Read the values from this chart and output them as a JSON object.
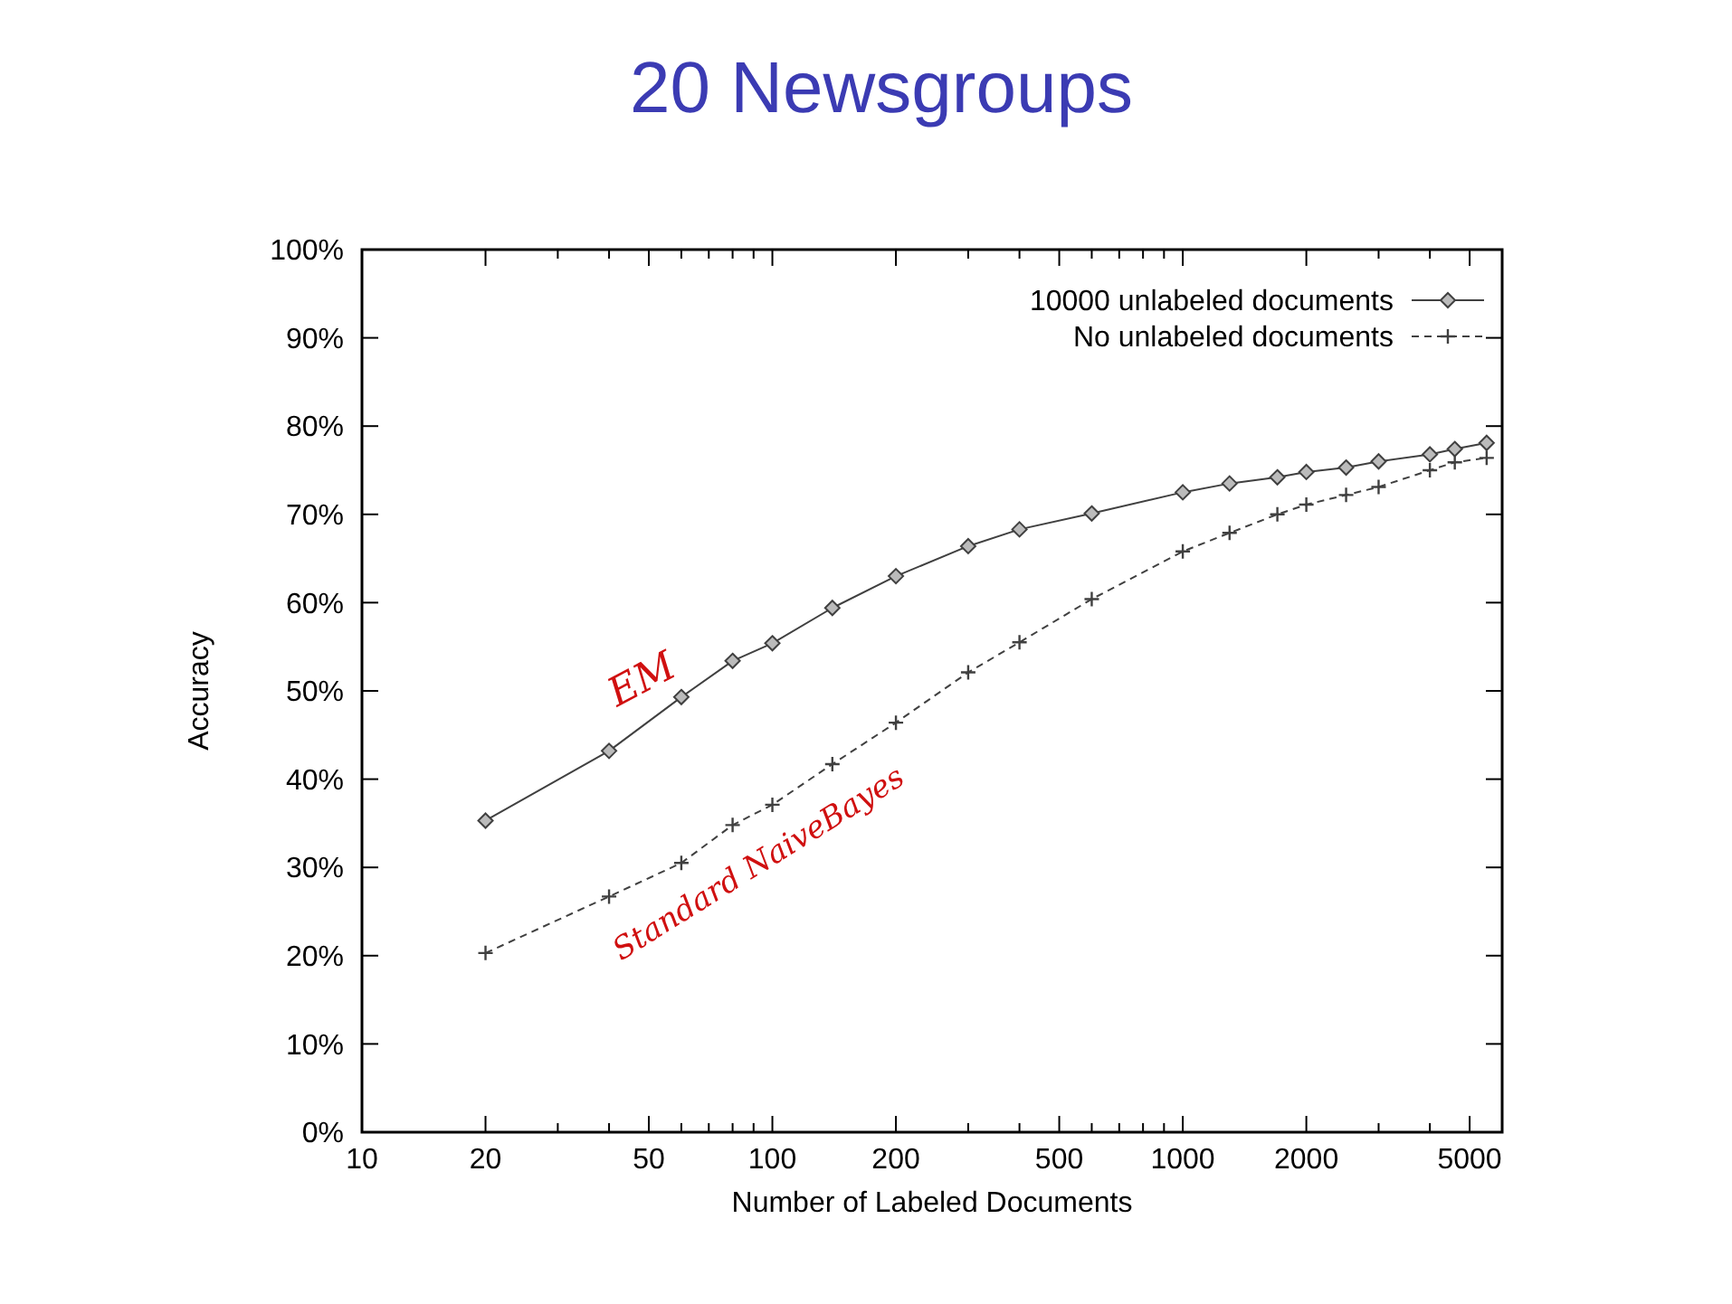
{
  "chart_data": {
    "type": "line",
    "title": "20 Newsgroups",
    "xlabel": "Number of Labeled Documents",
    "ylabel": "Accuracy",
    "log": "x",
    "xlim": [
      10,
      6000
    ],
    "ylim": [
      0,
      100
    ],
    "xticks": [
      10,
      20,
      {
        "value": 30,
        "label": null
      },
      {
        "value": 40,
        "label": null
      },
      50,
      {
        "value": 60,
        "label": null
      },
      {
        "value": 70,
        "label": null
      },
      {
        "value": 80,
        "label": null
      },
      {
        "value": 90,
        "label": null
      },
      100,
      200,
      {
        "value": 300,
        "label": null
      },
      {
        "value": 400,
        "label": null
      },
      500,
      {
        "value": 600,
        "label": null
      },
      {
        "value": 700,
        "label": null
      },
      {
        "value": 800,
        "label": null
      },
      {
        "value": 900,
        "label": null
      },
      1000,
      2000,
      {
        "value": 3000,
        "label": null
      },
      {
        "value": 4000,
        "label": null
      },
      5000
    ],
    "yticks": [
      {
        "value": 0,
        "label": "0%"
      },
      {
        "value": 10,
        "label": "10%"
      },
      {
        "value": 20,
        "label": "20%"
      },
      {
        "value": 30,
        "label": "30%"
      },
      {
        "value": 40,
        "label": "40%"
      },
      {
        "value": 50,
        "label": "50%"
      },
      {
        "value": 60,
        "label": "60%"
      },
      {
        "value": 70,
        "label": "70%"
      },
      {
        "value": 80,
        "label": "80%"
      },
      {
        "value": 90,
        "label": "90%"
      },
      {
        "value": 100,
        "label": "100%"
      }
    ],
    "x": [
      20,
      40,
      60,
      80,
      100,
      140,
      200,
      300,
      400,
      600,
      1000,
      1300,
      1700,
      2000,
      2500,
      3000,
      4000,
      4600,
      5500
    ],
    "series": [
      {
        "name": "10000 unlabeled documents",
        "color": "#404040",
        "marker": "diamond",
        "line_style": "solid",
        "values": [
          35.3,
          43.2,
          49.3,
          53.4,
          55.4,
          59.4,
          63,
          66.4,
          68.3,
          70.1,
          72.5,
          73.5,
          74.2,
          74.8,
          75.3,
          76,
          76.8,
          77.4,
          78.1
        ]
      },
      {
        "name": "No unlabeled documents",
        "color": "#404040",
        "marker": "cross",
        "line_style": "dashed",
        "values": [
          20.3,
          26.7,
          30.5,
          34.8,
          37.1,
          41.7,
          46.4,
          52.1,
          55.5,
          60.4,
          65.8,
          67.9,
          70,
          71.1,
          72.2,
          73.1,
          75,
          75.9,
          76.4
        ]
      }
    ],
    "legend": "top right",
    "grid": false,
    "annotations": [
      "EM",
      "Standard NaiveBayes"
    ]
  }
}
